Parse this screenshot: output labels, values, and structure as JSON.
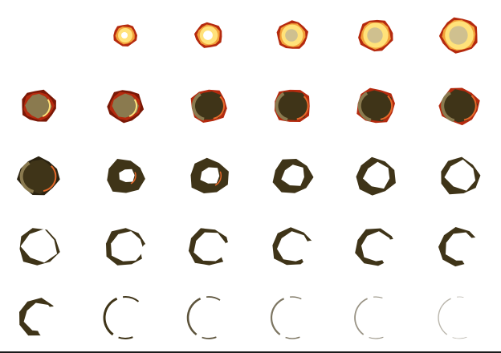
{
  "sprite_sheet": {
    "columns": 6,
    "rows": 5,
    "frame_count": 29,
    "first_frame_blank": true,
    "colors": {
      "background": "#ffffff",
      "flash_core": "#ffffff",
      "flash_yellow": "#ffe27a",
      "flash_orange": "#f2a13a",
      "rim_red": "#b52a0e",
      "rim_dark_red": "#7a1806",
      "smoke_light": "#cfc08f",
      "smoke_mid": "#8a7a4f",
      "smoke_dark": "#3f3418",
      "smoke_darkest": "#2a2210",
      "ember": "#e5682a"
    },
    "stages": [
      "flash",
      "flash",
      "flash",
      "flash",
      "flash",
      "fading-flash",
      "fading-flash",
      "smoke-ring",
      "smoke-ring",
      "smoke-ring",
      "smoke-ring",
      "smoke-ring",
      "open-ring",
      "open-ring",
      "open-ring",
      "open-ring",
      "open-ring",
      "open-ring",
      "thin-ring",
      "thin-ring",
      "thin-ring",
      "thin-ring",
      "thin-ring",
      "thin-ring",
      "wisp",
      "wisp",
      "wisp",
      "wisp",
      "wisp"
    ]
  }
}
